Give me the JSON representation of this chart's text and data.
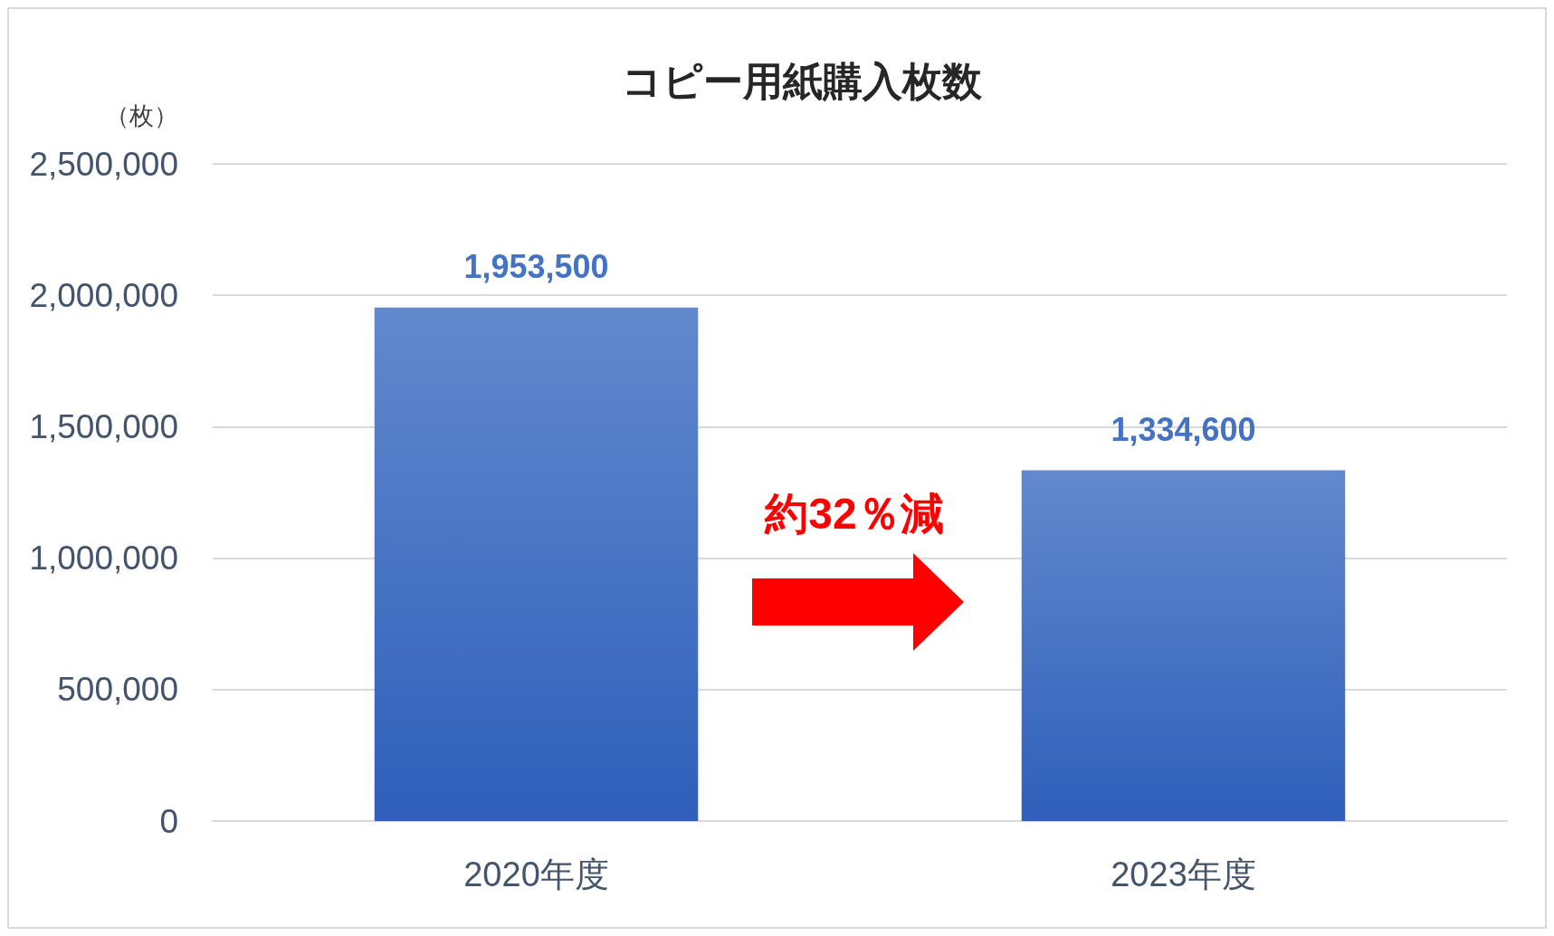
{
  "chart_data": {
    "type": "bar",
    "title": "コピー用紙購入枚数",
    "ylabel": "（枚）",
    "categories": [
      "2020年度",
      "2023年度"
    ],
    "values": [
      1953500,
      1334600
    ],
    "value_labels": [
      "1,953,500",
      "1,334,600"
    ],
    "color": "#4472c4",
    "ylim": [
      0,
      2500000
    ],
    "yticks": [
      0,
      {
        "value": 500000,
        "label": "500,000"
      },
      {
        "value": 1000000,
        "label": "1,000,000"
      },
      {
        "value": 1500000,
        "label": "1,500,000"
      },
      {
        "value": 2000000,
        "label": "2,000,000"
      },
      {
        "value": 2500000,
        "label": "2,500,000"
      }
    ],
    "grid": "y",
    "annotations": [
      "約32％減"
    ]
  }
}
